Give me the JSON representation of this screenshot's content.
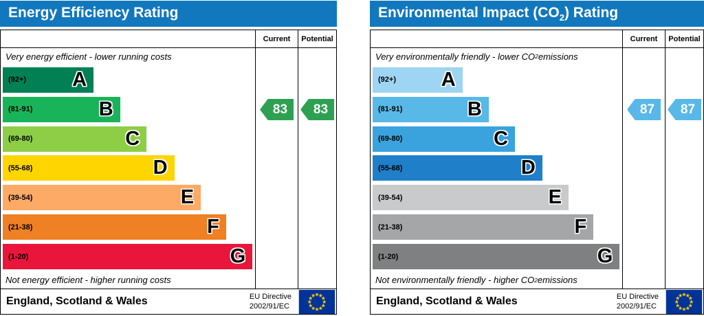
{
  "charts": [
    {
      "title": {
        "pre": "Energy Efficiency Rating",
        "sub": "",
        "post": ""
      },
      "header_color": "#1278be",
      "columns": {
        "current": "Current",
        "potential": "Potential"
      },
      "top_note": {
        "pre": "Very energy efficient - lower running costs",
        "sub": "",
        "post": ""
      },
      "bottom_note": {
        "pre": "Not energy efficient - higher running costs",
        "sub": "",
        "post": ""
      },
      "bands": [
        {
          "label": "A",
          "range": "(92+)",
          "color": "#008054"
        },
        {
          "label": "B",
          "range": "(81-91)",
          "color": "#19b459"
        },
        {
          "label": "C",
          "range": "(69-80)",
          "color": "#8dce46"
        },
        {
          "label": "D",
          "range": "(55-68)",
          "color": "#ffd500"
        },
        {
          "label": "E",
          "range": "(39-54)",
          "color": "#fcaa65"
        },
        {
          "label": "F",
          "range": "(21-38)",
          "color": "#ef8023"
        },
        {
          "label": "G",
          "range": "(1-20)",
          "color": "#e9153b"
        }
      ],
      "current": {
        "value": "83",
        "band_index": 1,
        "color": "#2ea052"
      },
      "potential": {
        "value": "83",
        "band_index": 1,
        "color": "#2ea052"
      },
      "footer": {
        "region": "England, Scotland & Wales",
        "directive_line1": "EU Directive",
        "directive_line2": "2002/91/EC",
        "flag_field_color": "#003399",
        "flag_star_color": "#ffcc00"
      }
    },
    {
      "title": {
        "pre": "Environmental Impact (CO",
        "sub": "2",
        "post": ") Rating"
      },
      "header_color": "#1278be",
      "columns": {
        "current": "Current",
        "potential": "Potential"
      },
      "top_note": {
        "pre": "Very environmentally friendly - lower CO",
        "sub": "2",
        "post": " emissions"
      },
      "bottom_note": {
        "pre": "Not environmentally friendly - higher CO",
        "sub": "2",
        "post": " emissions"
      },
      "bands": [
        {
          "label": "A",
          "range": "(92+)",
          "color": "#9ed5f2"
        },
        {
          "label": "B",
          "range": "(81-91)",
          "color": "#58b8e8"
        },
        {
          "label": "C",
          "range": "(69-80)",
          "color": "#3aa3dd"
        },
        {
          "label": "D",
          "range": "(55-68)",
          "color": "#1f7fc9"
        },
        {
          "label": "E",
          "range": "(39-54)",
          "color": "#c9cacb"
        },
        {
          "label": "F",
          "range": "(21-38)",
          "color": "#a5a6a7"
        },
        {
          "label": "G",
          "range": "(1-20)",
          "color": "#7f8081"
        }
      ],
      "current": {
        "value": "87",
        "band_index": 1,
        "color": "#58b8e8"
      },
      "potential": {
        "value": "87",
        "band_index": 1,
        "color": "#58b8e8"
      },
      "footer": {
        "region": "England, Scotland & Wales",
        "directive_line1": "EU Directive",
        "directive_line2": "2002/91/EC",
        "flag_field_color": "#003399",
        "flag_star_color": "#ffcc00"
      }
    }
  ],
  "chart_data": [
    {
      "type": "bar",
      "title": "Energy Efficiency Rating",
      "categories": [
        "A",
        "B",
        "C",
        "D",
        "E",
        "F",
        "G"
      ],
      "band_ranges": [
        "92+",
        "81-91",
        "69-80",
        "55-68",
        "39-54",
        "21-38",
        "1-20"
      ],
      "band_colors": [
        "#008054",
        "#19b459",
        "#8dce46",
        "#ffd500",
        "#fcaa65",
        "#ef8023",
        "#e9153b"
      ],
      "series": [
        {
          "name": "Current",
          "value": 83,
          "band": "B"
        },
        {
          "name": "Potential",
          "value": 83,
          "band": "B"
        }
      ],
      "value_range": [
        1,
        100
      ],
      "annotations": [
        "Very energy efficient - lower running costs",
        "Not energy efficient - higher running costs"
      ],
      "footer": "England, Scotland & Wales",
      "directive": "EU Directive 2002/91/EC"
    },
    {
      "type": "bar",
      "title": "Environmental Impact (CO2) Rating",
      "categories": [
        "A",
        "B",
        "C",
        "D",
        "E",
        "F",
        "G"
      ],
      "band_ranges": [
        "92+",
        "81-91",
        "69-80",
        "55-68",
        "39-54",
        "21-38",
        "1-20"
      ],
      "band_colors": [
        "#9ed5f2",
        "#58b8e8",
        "#3aa3dd",
        "#1f7fc9",
        "#c9cacb",
        "#a5a6a7",
        "#7f8081"
      ],
      "series": [
        {
          "name": "Current",
          "value": 87,
          "band": "B"
        },
        {
          "name": "Potential",
          "value": 87,
          "band": "B"
        }
      ],
      "value_range": [
        1,
        100
      ],
      "annotations": [
        "Very environmentally friendly - lower CO2 emissions",
        "Not environmentally friendly - higher CO2 emissions"
      ],
      "footer": "England, Scotland & Wales",
      "directive": "EU Directive 2002/91/EC"
    }
  ]
}
